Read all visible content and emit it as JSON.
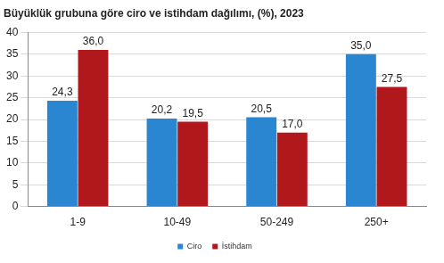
{
  "chart_data": {
    "type": "bar",
    "title": "Büyüklük grubuna göre ciro ve istihdam dağılımı, (%), 2023",
    "categories": [
      "1-9",
      "10-49",
      "50-249",
      "250+"
    ],
    "series": [
      {
        "name": "Ciro",
        "color": "#2a86d1",
        "values": [
          24.3,
          20.2,
          20.5,
          35.0
        ],
        "value_labels": [
          "24,3",
          "20,2",
          "20,5",
          "35,0"
        ]
      },
      {
        "name": "İstihdam",
        "color": "#b0181c",
        "values": [
          36.0,
          19.5,
          17.0,
          27.5
        ],
        "value_labels": [
          "36,0",
          "19,5",
          "17,0",
          "27,5"
        ]
      }
    ],
    "ylim": [
      0,
      40
    ],
    "yticks": [
      0,
      5,
      10,
      15,
      20,
      25,
      30,
      35,
      40
    ],
    "grid": true,
    "legend": "bottom",
    "data_labels": true
  }
}
